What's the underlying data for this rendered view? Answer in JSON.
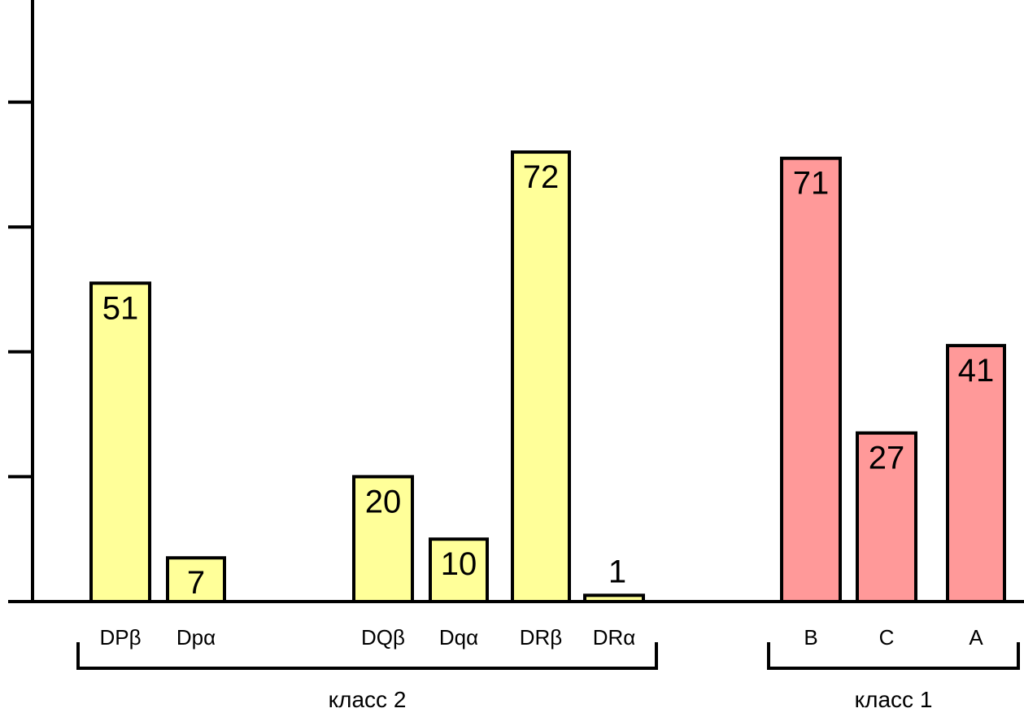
{
  "chart_data": {
    "type": "bar",
    "categories": [
      "DPβ",
      "Dpα",
      "DQβ",
      "Dqα",
      "DRβ",
      "DRα",
      "B",
      "C",
      "A"
    ],
    "values": [
      51,
      7,
      20,
      10,
      72,
      1,
      71,
      27,
      41
    ],
    "value_labels": [
      "51",
      "7",
      "20",
      "10",
      "72",
      "1",
      "71",
      "27",
      "41"
    ],
    "groups": [
      {
        "label": "класс 2",
        "categories": [
          "DPβ",
          "Dpα",
          "DQβ",
          "Dqα",
          "DRβ",
          "DRα"
        ],
        "color": "#ffff99"
      },
      {
        "label": "класс 1",
        "categories": [
          "B",
          "C",
          "A"
        ],
        "color": "#ff9999"
      }
    ],
    "ylim": [
      0,
      100
    ],
    "y_ticks": [
      0,
      20,
      40,
      60,
      80,
      100
    ],
    "grid": false,
    "legend": "none"
  },
  "colors": {
    "class2_bar": "#ffff99",
    "class1_bar": "#ff9999",
    "outline": "#000000"
  }
}
